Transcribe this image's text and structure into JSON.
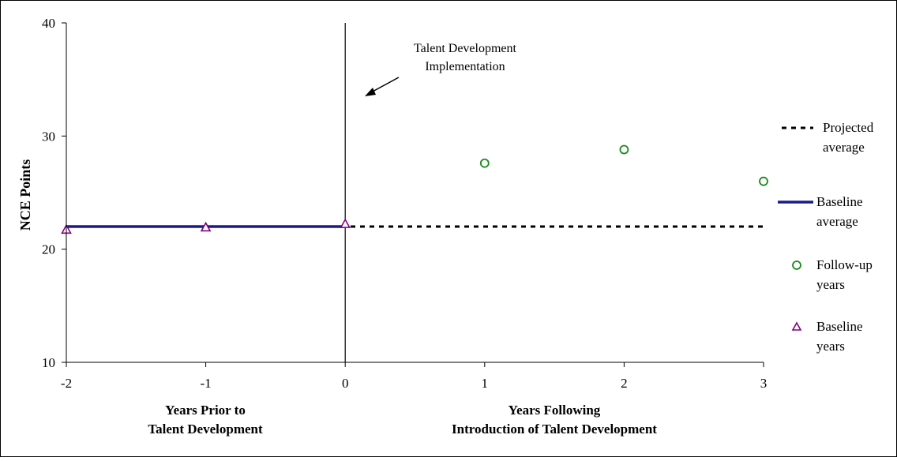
{
  "chart_data": {
    "type": "scatter",
    "ylabel": "NCE Points",
    "xlabel_left_line1": "Years Prior to",
    "xlabel_left_line2": "Talent Development",
    "xlabel_right_line1": "Years Following",
    "xlabel_right_line2": "Introduction of Talent Development",
    "xlim": [
      -2,
      3
    ],
    "ylim": [
      10,
      40
    ],
    "x_ticks": [
      "-2",
      "-1",
      "0",
      "1",
      "2",
      "3"
    ],
    "y_ticks": [
      "10",
      "20",
      "30",
      "40"
    ],
    "grid": false,
    "legend_position": "right",
    "annotation": {
      "line1": "Talent Development",
      "line2": "Implementation",
      "at_x": 0
    },
    "series": [
      {
        "name": "Projected average",
        "type": "line",
        "style": "dashed",
        "color": "#000000",
        "points": [
          {
            "x": -2,
            "y": 22
          },
          {
            "x": 3,
            "y": 22
          }
        ]
      },
      {
        "name": "Baseline average",
        "type": "line",
        "style": "solid",
        "color": "#1a1a8c",
        "points": [
          {
            "x": -2,
            "y": 22
          },
          {
            "x": 0,
            "y": 22
          }
        ]
      },
      {
        "name": "Follow-up years",
        "type": "scatter",
        "marker": "circle",
        "color": "#1a8a1a",
        "points": [
          {
            "x": 1,
            "y": 27.6
          },
          {
            "x": 2,
            "y": 28.8
          },
          {
            "x": 3,
            "y": 26
          }
        ]
      },
      {
        "name": "Baseline years",
        "type": "scatter",
        "marker": "triangle",
        "color": "#800080",
        "points": [
          {
            "x": -2,
            "y": 21.7
          },
          {
            "x": -1,
            "y": 21.9
          },
          {
            "x": 0,
            "y": 22.2
          }
        ]
      }
    ],
    "legend": [
      {
        "line1": "Projected",
        "line2": "average"
      },
      {
        "line1": "Baseline",
        "line2": "average"
      },
      {
        "line1": "Follow-up",
        "line2": "years"
      },
      {
        "line1": "Baseline",
        "line2": "years"
      }
    ]
  }
}
